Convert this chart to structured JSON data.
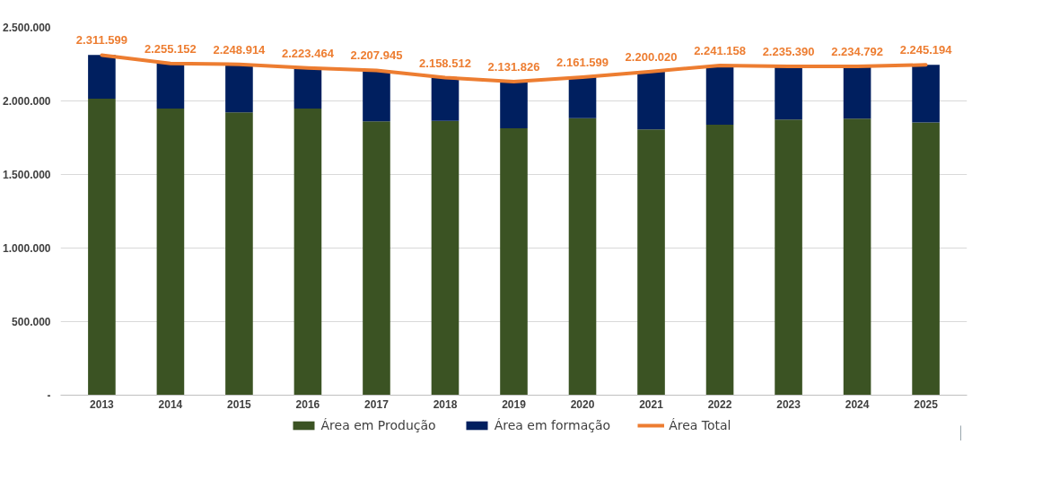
{
  "chart_data": {
    "type": "bar",
    "stacked": true,
    "categories": [
      "2013",
      "2014",
      "2015",
      "2016",
      "2017",
      "2018",
      "2019",
      "2020",
      "2021",
      "2022",
      "2023",
      "2024",
      "2025"
    ],
    "series": [
      {
        "name": "Área em Produção",
        "color": "#3b5323",
        "values": [
          2016000,
          1948000,
          1922000,
          1948000,
          1861000,
          1865000,
          1814000,
          1882000,
          1807000,
          1839000,
          1873000,
          1880000,
          1854000
        ]
      },
      {
        "name": "Área em formação",
        "color": "#001f5f",
        "values": [
          296000,
          307000,
          327000,
          275000,
          347000,
          294000,
          318000,
          280000,
          393000,
          402000,
          362000,
          355000,
          391000
        ]
      },
      {
        "name": "Área Total",
        "type": "line",
        "color": "#ed7d31",
        "values": [
          2311599,
          2255152,
          2248914,
          2223464,
          2207945,
          2158512,
          2131826,
          2161599,
          2200020,
          2241158,
          2235390,
          2234792,
          2245194
        ],
        "value_labels": [
          "2.311.599",
          "2.255.152",
          "2.248.914",
          "2.223.464",
          "2.207.945",
          "2.158.512",
          "2.131.826",
          "2.161.599",
          "2.200.020",
          "2.241.158",
          "2.235.390",
          "2.234.792",
          "2.245.194"
        ]
      }
    ],
    "ylim": [
      0,
      2500000
    ],
    "yticks": [
      {
        "value": 0,
        "label": "-"
      },
      {
        "value": 500000,
        "label": "500.000"
      },
      {
        "value": 1000000,
        "label": "1.000.000"
      },
      {
        "value": 1500000,
        "label": "1.500.000"
      },
      {
        "value": 2000000,
        "label": "2.000.000"
      },
      {
        "value": 2500000,
        "label": "2.500.000"
      }
    ],
    "grid": "y",
    "legend": "bottom"
  }
}
